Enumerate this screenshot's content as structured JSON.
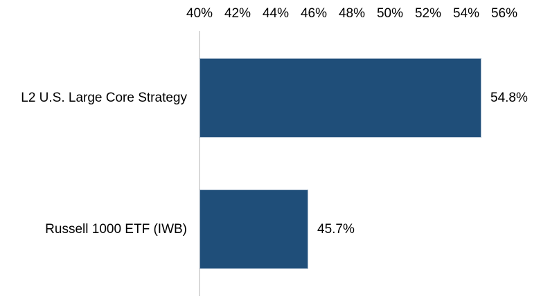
{
  "chart_data": {
    "type": "bar",
    "orientation": "horizontal",
    "title": "",
    "categories": [
      "L2 U.S. Large Core Strategy",
      "Russell 1000 ETF (IWB)"
    ],
    "values": [
      54.8,
      45.7
    ],
    "value_labels": [
      "54.8%",
      "45.7%"
    ],
    "x_ticks": [
      "40%",
      "42%",
      "44%",
      "46%",
      "48%",
      "50%",
      "52%",
      "54%",
      "56%"
    ],
    "x_tick_values": [
      40,
      42,
      44,
      46,
      48,
      50,
      52,
      54,
      56
    ],
    "xlim": [
      40,
      56
    ],
    "grid": false,
    "legend": false,
    "x_axis_position": "top",
    "bar_color": "#1F4E79",
    "bar_edge_color": "#AEBFD0",
    "axis_line_color": "#D9D9D9",
    "text_color": "#000000",
    "background": "#FFFFFF"
  }
}
